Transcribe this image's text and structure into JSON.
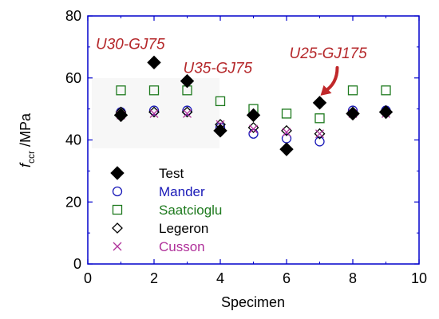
{
  "chart_data": {
    "type": "scatter",
    "xlabel": "Specimen",
    "ylabel_main": "f",
    "ylabel_sub": "ccr",
    "ylabel_unit": " /MPa",
    "xlim": [
      0,
      10
    ],
    "ylim": [
      0,
      80
    ],
    "xticks": [
      0,
      2,
      4,
      6,
      8,
      10
    ],
    "yticks": [
      0,
      20,
      40,
      60,
      80
    ],
    "grid": false,
    "legend_position": "bottom-left",
    "series": [
      {
        "name": "Test",
        "marker": "filled-diamond",
        "color": "#000000",
        "x": [
          1,
          2,
          3,
          4,
          5,
          6,
          7,
          8,
          9
        ],
        "y": [
          48,
          65,
          59,
          43,
          48,
          37,
          52,
          48.5,
          49
        ]
      },
      {
        "name": "Mander",
        "marker": "circle",
        "color": "#1a1ab8",
        "x": [
          1,
          2,
          3,
          4,
          5,
          6,
          7,
          8,
          9
        ],
        "y": [
          49,
          49.5,
          49.5,
          44,
          42,
          40.5,
          39.5,
          49.5,
          49.5
        ]
      },
      {
        "name": "Saatcioglu",
        "marker": "square",
        "color": "#1e7a1e",
        "x": [
          1,
          2,
          3,
          4,
          5,
          6,
          7,
          8,
          9
        ],
        "y": [
          56,
          56,
          56,
          52.5,
          50,
          48.5,
          47,
          56,
          56
        ]
      },
      {
        "name": "Legeron",
        "marker": "diamond",
        "color": "#000000",
        "x": [
          1,
          2,
          3,
          4,
          5,
          6,
          7,
          8,
          9
        ],
        "y": [
          49,
          49,
          49,
          45,
          44,
          43,
          42,
          49,
          49
        ]
      },
      {
        "name": "Cusson",
        "marker": "cross",
        "color": "#b0309a",
        "x": [
          1,
          2,
          3,
          4,
          5,
          6,
          7,
          8,
          9
        ],
        "y": [
          48,
          48.5,
          48.5,
          45,
          43.5,
          42.5,
          42,
          48.5,
          48.5
        ]
      }
    ],
    "annotations": [
      {
        "text": "U30-GJ75",
        "x": 2,
        "y": 65
      },
      {
        "text": "U35-GJ75",
        "x": 3,
        "y": 59
      },
      {
        "text": "U25-GJ175",
        "x": 7,
        "y": 52
      }
    ]
  },
  "colors": {
    "axis": "#0000cc",
    "annotation": "#b5282b",
    "arrow": "#c0282a"
  }
}
